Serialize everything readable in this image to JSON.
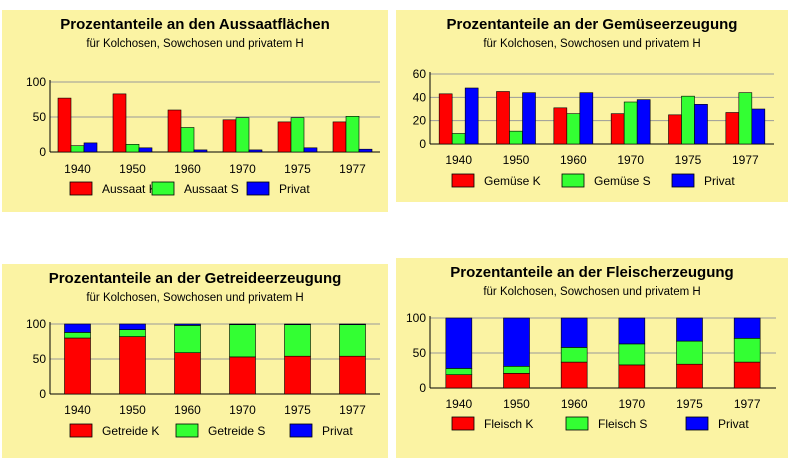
{
  "colors": {
    "kolchosen": "#ff0000",
    "sowchosen": "#33ff33",
    "privat": "#0000ff",
    "panel": "#fbf3a3"
  },
  "chart_data": [
    {
      "id": "aussaat",
      "type": "bar",
      "title": "Prozentanteile an den Aussaatflächen",
      "subtitle": "für Kolchosen, Sowchosen und privatem H",
      "categories": [
        "1940",
        "1950",
        "1960",
        "1970",
        "1975",
        "1977"
      ],
      "ylim": [
        0,
        100
      ],
      "yticks": [
        "0",
        "50",
        "100"
      ],
      "series": [
        {
          "name": "Aussaat K",
          "color": "#ff0000",
          "values": [
            77,
            83,
            60,
            46,
            43,
            43
          ]
        },
        {
          "name": "Aussaat S",
          "color": "#33ff33",
          "values": [
            9,
            11,
            35,
            49,
            49,
            51
          ]
        },
        {
          "name": "Privat",
          "color": "#0000ff",
          "values": [
            13,
            6,
            3,
            3,
            6,
            4
          ]
        }
      ]
    },
    {
      "id": "gemuese",
      "type": "bar",
      "title": "Prozentanteile an der Gemüseerzeugung",
      "subtitle": "für Kolchosen, Sowchosen und privatem H",
      "categories": [
        "1940",
        "1950",
        "1960",
        "1970",
        "1975",
        "1977"
      ],
      "ylim": [
        0,
        60
      ],
      "yticks": [
        "0",
        "20",
        "40",
        "60"
      ],
      "series": [
        {
          "name": "Gemüse K",
          "color": "#ff0000",
          "values": [
            43,
            45,
            31,
            26,
            25,
            27
          ]
        },
        {
          "name": "Gemüse S",
          "color": "#33ff33",
          "values": [
            9,
            11,
            26,
            36,
            41,
            44
          ]
        },
        {
          "name": "Privat",
          "color": "#0000ff",
          "values": [
            48,
            44,
            44,
            38,
            34,
            30
          ]
        }
      ]
    },
    {
      "id": "getreide",
      "type": "stacked-bar",
      "title": "Prozentanteile an der Getreideerzeugung",
      "subtitle": "für Kolchosen, Sowchosen und privatem H",
      "categories": [
        "1940",
        "1950",
        "1960",
        "1970",
        "1975",
        "1977"
      ],
      "ylim": [
        0,
        100
      ],
      "yticks": [
        "0",
        "50",
        "100"
      ],
      "series": [
        {
          "name": "Getreide K",
          "color": "#ff0000",
          "values": [
            80,
            82,
            59,
            53,
            54,
            54
          ]
        },
        {
          "name": "Getreide S",
          "color": "#33ff33",
          "values": [
            8,
            10,
            39,
            46,
            45,
            45
          ]
        },
        {
          "name": "Privat",
          "color": "#0000ff",
          "values": [
            12,
            8,
            2,
            1,
            1,
            1
          ]
        }
      ]
    },
    {
      "id": "fleisch",
      "type": "stacked-bar",
      "title": "Prozentanteile an der Fleischerzeugung",
      "subtitle": "für Kolchosen, Sowchosen und privatem H",
      "categories": [
        "1940",
        "1950",
        "1960",
        "1970",
        "1975",
        "1977"
      ],
      "ylim": [
        0,
        100
      ],
      "yticks": [
        "0",
        "50",
        "100"
      ],
      "series": [
        {
          "name": "Fleisch K",
          "color": "#ff0000",
          "values": [
            19,
            21,
            37,
            33,
            34,
            37
          ]
        },
        {
          "name": "Fleisch S",
          "color": "#33ff33",
          "values": [
            9,
            10,
            21,
            30,
            33,
            34
          ]
        },
        {
          "name": "Privat",
          "color": "#0000ff",
          "values": [
            72,
            69,
            42,
            37,
            33,
            29
          ]
        }
      ]
    }
  ]
}
